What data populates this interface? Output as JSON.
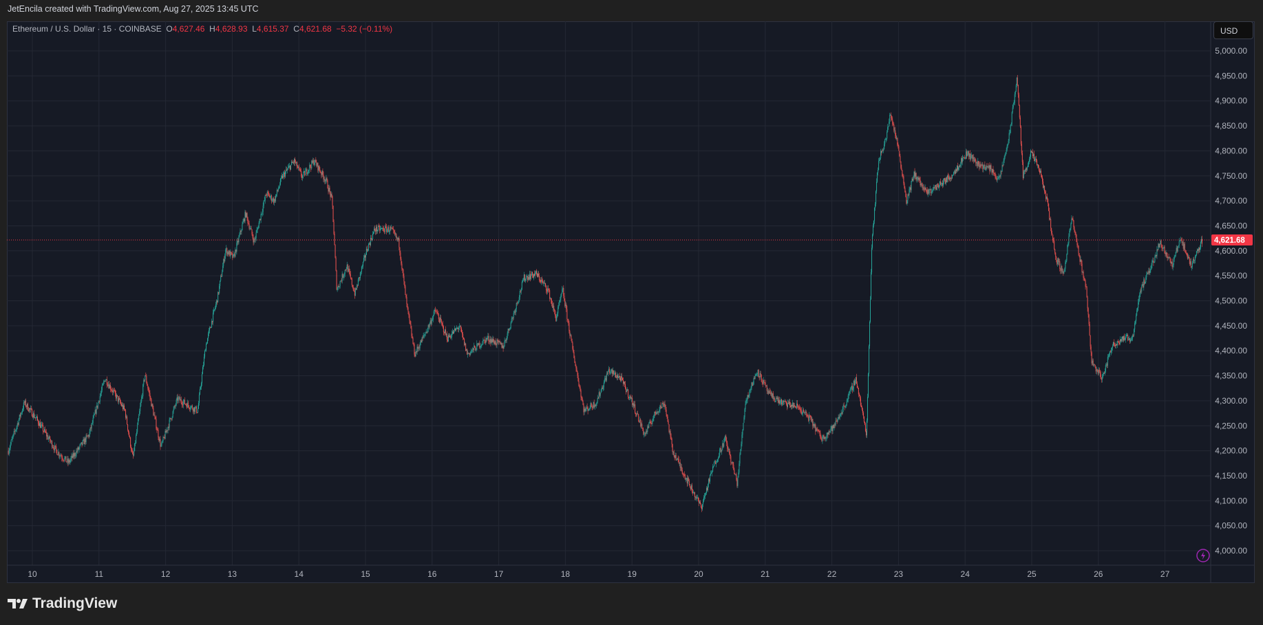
{
  "credit": "JetEncila created with TradingView.com, Aug 27, 2025 13:45 UTC",
  "legend": {
    "symbol": "Ethereum / U.S. Dollar · 15 · COINBASE",
    "o_label": "O",
    "o": "4,627.46",
    "h_label": "H",
    "h": "4,628.93",
    "l_label": "L",
    "l": "4,615.37",
    "c_label": "C",
    "c": "4,621.68",
    "change": "−5.32 (−0.11%)"
  },
  "currency": "USD",
  "brand": "TradingView",
  "colors": {
    "up": "#26a69a",
    "down": "#ef5350",
    "background": "#161a25",
    "grid": "#242834",
    "price_label": "#f23645"
  },
  "chart_data": {
    "type": "candlestick",
    "interval": "15",
    "ylim": [
      4000,
      5000
    ],
    "y_ticks": [
      "4,000.00",
      "4,050.00",
      "4,100.00",
      "4,150.00",
      "4,200.00",
      "4,250.00",
      "4,300.00",
      "4,350.00",
      "4,400.00",
      "4,450.00",
      "4,500.00",
      "4,550.00",
      "4,600.00",
      "4,650.00",
      "4,700.00",
      "4,750.00",
      "4,800.00",
      "4,850.00",
      "4,900.00",
      "4,950.00",
      "5,000.00"
    ],
    "x_ticks": [
      "10",
      "11",
      "12",
      "13",
      "14",
      "15",
      "16",
      "17",
      "18",
      "19",
      "20",
      "21",
      "22",
      "23",
      "24",
      "25",
      "26",
      "27"
    ],
    "grid": true,
    "last_price": 4621.68,
    "last_price_label": "4,621.68",
    "approx_path": [
      [
        9.64,
        4200
      ],
      [
        9.88,
        4296
      ],
      [
        10.06,
        4264
      ],
      [
        10.36,
        4200
      ],
      [
        10.54,
        4176
      ],
      [
        10.85,
        4232
      ],
      [
        11.09,
        4345
      ],
      [
        11.39,
        4280
      ],
      [
        11.51,
        4184
      ],
      [
        11.69,
        4353
      ],
      [
        11.93,
        4208
      ],
      [
        12.18,
        4304
      ],
      [
        12.48,
        4280
      ],
      [
        12.6,
        4409
      ],
      [
        12.78,
        4506
      ],
      [
        12.9,
        4602
      ],
      [
        13.02,
        4586
      ],
      [
        13.2,
        4675
      ],
      [
        13.33,
        4618
      ],
      [
        13.51,
        4715
      ],
      [
        13.63,
        4700
      ],
      [
        13.75,
        4748
      ],
      [
        13.93,
        4780
      ],
      [
        14.05,
        4748
      ],
      [
        14.23,
        4780
      ],
      [
        14.41,
        4740
      ],
      [
        14.5,
        4700
      ],
      [
        14.57,
        4522
      ],
      [
        14.72,
        4570
      ],
      [
        14.84,
        4514
      ],
      [
        15.02,
        4602
      ],
      [
        15.14,
        4643
      ],
      [
        15.38,
        4643
      ],
      [
        15.5,
        4618
      ],
      [
        15.62,
        4490
      ],
      [
        15.74,
        4393
      ],
      [
        15.92,
        4441
      ],
      [
        16.05,
        4481
      ],
      [
        16.23,
        4425
      ],
      [
        16.41,
        4449
      ],
      [
        16.53,
        4393
      ],
      [
        16.83,
        4425
      ],
      [
        17.07,
        4409
      ],
      [
        17.26,
        4490
      ],
      [
        17.38,
        4546
      ],
      [
        17.56,
        4554
      ],
      [
        17.74,
        4522
      ],
      [
        17.86,
        4465
      ],
      [
        17.96,
        4522
      ],
      [
        18.1,
        4409
      ],
      [
        18.28,
        4280
      ],
      [
        18.46,
        4296
      ],
      [
        18.65,
        4361
      ],
      [
        18.83,
        4345
      ],
      [
        19.01,
        4296
      ],
      [
        19.19,
        4232
      ],
      [
        19.37,
        4280
      ],
      [
        19.49,
        4296
      ],
      [
        19.61,
        4200
      ],
      [
        19.79,
        4151
      ],
      [
        20.04,
        4087
      ],
      [
        20.22,
        4168
      ],
      [
        20.4,
        4224
      ],
      [
        20.58,
        4135
      ],
      [
        20.7,
        4296
      ],
      [
        20.88,
        4361
      ],
      [
        21.06,
        4312
      ],
      [
        21.25,
        4296
      ],
      [
        21.49,
        4288
      ],
      [
        21.67,
        4264
      ],
      [
        21.85,
        4224
      ],
      [
        22.03,
        4248
      ],
      [
        22.21,
        4296
      ],
      [
        22.36,
        4345
      ],
      [
        22.52,
        4232
      ],
      [
        22.6,
        4618
      ],
      [
        22.7,
        4780
      ],
      [
        22.82,
        4828
      ],
      [
        22.88,
        4876
      ],
      [
        23.0,
        4804
      ],
      [
        23.12,
        4700
      ],
      [
        23.24,
        4755
      ],
      [
        23.42,
        4715
      ],
      [
        23.6,
        4731
      ],
      [
        23.78,
        4748
      ],
      [
        24.03,
        4796
      ],
      [
        24.21,
        4772
      ],
      [
        24.39,
        4764
      ],
      [
        24.51,
        4740
      ],
      [
        24.66,
        4828
      ],
      [
        24.78,
        4948
      ],
      [
        24.87,
        4748
      ],
      [
        24.99,
        4796
      ],
      [
        25.11,
        4764
      ],
      [
        25.23,
        4700
      ],
      [
        25.36,
        4586
      ],
      [
        25.48,
        4554
      ],
      [
        25.6,
        4667
      ],
      [
        25.72,
        4586
      ],
      [
        25.82,
        4522
      ],
      [
        25.9,
        4377
      ],
      [
        26.06,
        4345
      ],
      [
        26.2,
        4409
      ],
      [
        26.35,
        4425
      ],
      [
        26.51,
        4425
      ],
      [
        26.63,
        4522
      ],
      [
        26.75,
        4554
      ],
      [
        26.93,
        4618
      ],
      [
        27.11,
        4570
      ],
      [
        27.23,
        4627
      ],
      [
        27.39,
        4570
      ],
      [
        27.56,
        4621.68
      ]
    ]
  }
}
